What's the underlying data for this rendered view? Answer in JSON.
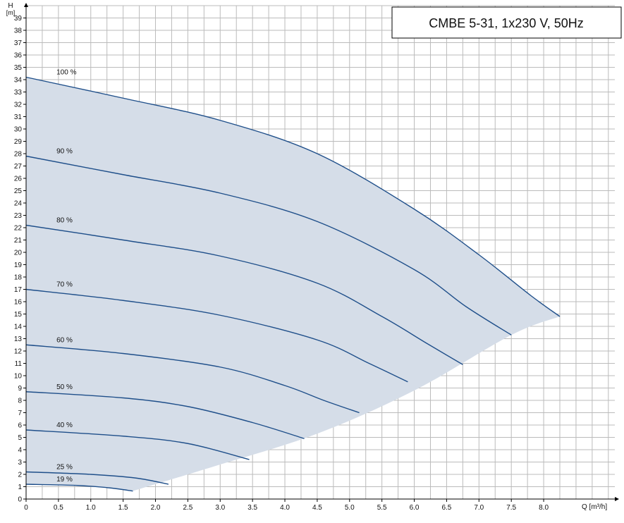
{
  "chart_data": {
    "type": "line",
    "title": "CMBE 5-31, 1x230 V, 50Hz",
    "ylabel_top": "H",
    "ylabel_unit": "[m]",
    "xlabel": "Q [m³/h]",
    "xlim": [
      0,
      9.1
    ],
    "ylim": [
      0,
      40
    ],
    "grid": true,
    "x_ticks": [
      "0",
      "0.5",
      "1.0",
      "1.5",
      "2.0",
      "2.5",
      "3.0",
      "3.5",
      "4.0",
      "4.5",
      "5.0",
      "5.5",
      "6.0",
      "6.5",
      "7.0",
      "7.5",
      "8.0"
    ],
    "y_ticks": [
      "0",
      "1",
      "2",
      "3",
      "4",
      "5",
      "6",
      "7",
      "8",
      "9",
      "10",
      "11",
      "12",
      "13",
      "14",
      "15",
      "16",
      "17",
      "18",
      "19",
      "20",
      "21",
      "22",
      "23",
      "24",
      "25",
      "26",
      "27",
      "28",
      "29",
      "30",
      "31",
      "32",
      "33",
      "34",
      "35",
      "36",
      "37",
      "38",
      "39"
    ],
    "series": [
      {
        "name": "100 %",
        "x": [
          0,
          1.5,
          3.0,
          4.5,
          6.0,
          7.0,
          7.8,
          8.25
        ],
        "y": [
          34.2,
          32.5,
          30.7,
          28.0,
          23.5,
          19.8,
          16.5,
          14.8
        ]
      },
      {
        "name": "90 %",
        "x": [
          0,
          1.5,
          3.0,
          4.5,
          6.0,
          6.8,
          7.5
        ],
        "y": [
          27.8,
          26.3,
          24.8,
          22.5,
          18.6,
          15.6,
          13.3
        ]
      },
      {
        "name": "80 %",
        "x": [
          0,
          1.5,
          3.0,
          4.5,
          5.5,
          6.2,
          6.75
        ],
        "y": [
          22.2,
          21.0,
          19.7,
          17.5,
          14.8,
          12.6,
          10.9
        ]
      },
      {
        "name": "70 %",
        "x": [
          0,
          1.5,
          3.0,
          4.5,
          5.3,
          5.9
        ],
        "y": [
          17.0,
          16.1,
          14.9,
          12.9,
          11.0,
          9.5
        ]
      },
      {
        "name": "60 %",
        "x": [
          0,
          1.5,
          3.0,
          4.0,
          4.6,
          5.15
        ],
        "y": [
          12.5,
          11.8,
          10.7,
          9.2,
          8.0,
          7.0
        ]
      },
      {
        "name": "50 %",
        "x": [
          0,
          1.5,
          2.5,
          3.5,
          4.3
        ],
        "y": [
          8.7,
          8.2,
          7.5,
          6.2,
          4.9
        ]
      },
      {
        "name": "40 %",
        "x": [
          0,
          1.5,
          2.5,
          3.45
        ],
        "y": [
          5.6,
          5.1,
          4.5,
          3.2
        ]
      },
      {
        "name": "25 %",
        "x": [
          0,
          1.0,
          1.7,
          2.2
        ],
        "y": [
          2.2,
          2.0,
          1.7,
          1.2
        ]
      },
      {
        "name": "19 %",
        "x": [
          0,
          0.8,
          1.3,
          1.65
        ],
        "y": [
          1.2,
          1.1,
          0.9,
          0.65
        ]
      }
    ],
    "min_curve": {
      "x": [
        1.65,
        3.0,
        4.5,
        6.0,
        7.5,
        8.25
      ],
      "y": [
        0.65,
        2.8,
        5.3,
        8.8,
        13.3,
        14.8
      ]
    }
  },
  "colors": {
    "fill": "#d5dde8",
    "curve": "#1f4f8a",
    "grid": "#bbbbbb",
    "axis": "#000000"
  }
}
